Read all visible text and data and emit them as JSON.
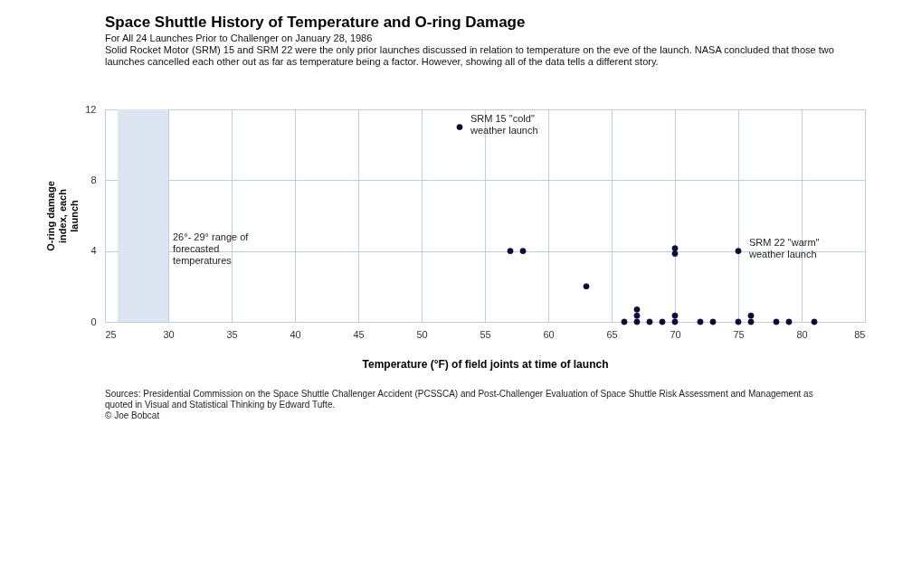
{
  "chart_data": {
    "type": "scatter",
    "title": "Space Shuttle History of Temperature and O-ring Damage",
    "subtitle": "For All 24 Launches Prior to Challenger on January 28, 1986",
    "xlabel": "Temperature (°F) of field joints at time of launch",
    "ylabel": "O-ring damage index, each launch",
    "x": [
      53,
      57,
      58,
      63,
      66,
      67,
      67,
      67,
      68,
      69,
      70,
      70,
      70,
      70,
      72,
      73,
      75,
      75,
      76,
      76,
      78,
      79,
      81
    ],
    "series": [
      {
        "color": "#0d0d3a",
        "values": [
          11,
          4,
          4,
          2,
          0,
          0,
          0.35,
          0.7,
          0,
          0,
          4.15,
          3.85,
          0.35,
          0,
          0,
          0,
          4,
          0,
          0.35,
          0,
          0,
          0,
          0
        ]
      }
    ],
    "xlim": [
      25,
      85
    ],
    "xticks": [
      25,
      30,
      35,
      40,
      45,
      50,
      55,
      60,
      65,
      70,
      75,
      80,
      85
    ],
    "ylim": [
      0,
      12
    ],
    "yticks": [
      0,
      4,
      8,
      12
    ],
    "grid": true,
    "marker": "circle",
    "bands": [
      {
        "axis": "x",
        "from": 26,
        "to": 30,
        "label": "26°- 29° range of forecasted temperatures",
        "color": "#dce6f2"
      }
    ],
    "annotations": [
      "Solid Rocket Motor (SRM) 15 and SRM 22 were the only prior launches discussed in relation to temperature on the eve of the launch.  NASA concluded that those two launches cancelled each other out as far as temperature being a factor.  However, showing all of the data tells a different story.",
      {
        "text": "SRM 15 \"cold\" weather launch",
        "x": 53,
        "y": 11
      },
      {
        "text": "SRM 22 \"warm\" weather launch",
        "x": 75,
        "y": 4
      },
      "Sources: Presidential Commission on the Space Shuttle Challenger Accident (PCSSCA) and Post-Challenger Evaluation of Space Shuttle Risk Assessment and Management as quoted in Visual and Statistical Thinking by Edward Tufte.",
      "© Joe Bobcat"
    ]
  }
}
